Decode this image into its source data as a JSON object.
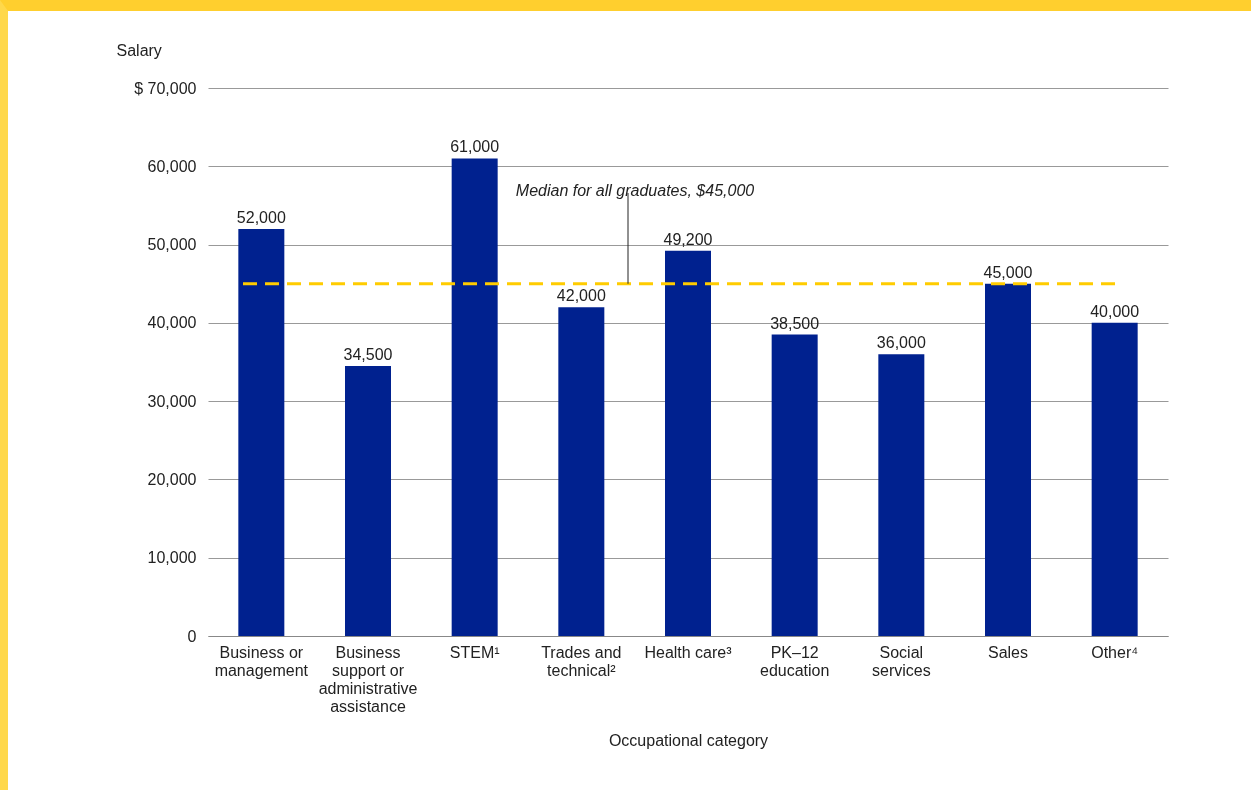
{
  "chart_data": {
    "type": "bar",
    "xlabel": "Occupational category",
    "ylabel": "Salary",
    "categories": [
      "Business or management",
      "Business support or administrative assistance",
      "STEM¹",
      "Trades and technical²",
      "Health care³",
      "PK–12 education",
      "Social services",
      "Sales",
      "Other⁴"
    ],
    "values": [
      52000,
      34500,
      61000,
      42000,
      49200,
      38500,
      36000,
      45000,
      40000
    ],
    "value_labels": [
      "52,000",
      "34,500",
      "61,000",
      "42,000",
      "49,200",
      "38,500",
      "36,000",
      "45,000",
      "40,000"
    ],
    "color": "#00218f",
    "ylim": [
      0,
      70000
    ],
    "yticks": [
      0,
      {
        "value": 10000,
        "label": "10,000"
      },
      {
        "value": 20000,
        "label": "20,000"
      },
      {
        "value": 30000,
        "label": "30,000"
      },
      {
        "value": 40000,
        "label": "40,000"
      },
      {
        "value": 50000,
        "label": "50,000"
      },
      {
        "value": 60000,
        "label": "60,000"
      },
      {
        "value": 70000,
        "label": "$ 70,000"
      }
    ],
    "grid": "y",
    "ref_lines": [
      {
        "axis": "y",
        "value": 45000,
        "label": "Median for all graduates, $45,000",
        "color": "#ffcc00",
        "line_style": "dashed"
      }
    ]
  }
}
